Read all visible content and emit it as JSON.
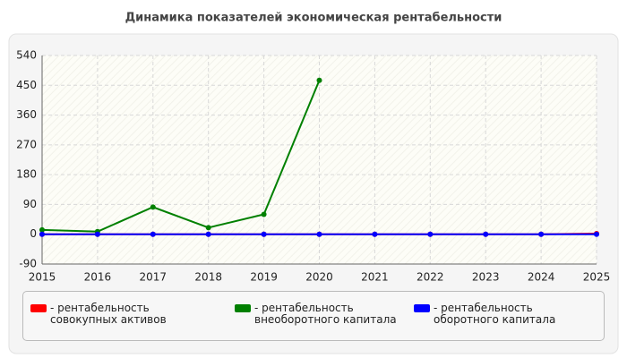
{
  "chart_data": {
    "type": "line",
    "title": "Динамика показателей экономическая рентабельности",
    "x": [
      2015,
      2016,
      2017,
      2018,
      2019,
      2020,
      2021,
      2022,
      2023,
      2024,
      2025
    ],
    "series": [
      {
        "name": "- рентабельность совокупных активов",
        "color": "#ff0000",
        "values": [
          0,
          0,
          0,
          0,
          0,
          0,
          0,
          0,
          0,
          0,
          2
        ]
      },
      {
        "name": "- рентабельность внеоборотного капитала",
        "color": "#008000",
        "values": [
          13,
          8,
          82,
          20,
          60,
          465,
          null,
          null,
          null,
          null,
          null
        ]
      },
      {
        "name": "- рентабельность оборотного капитала",
        "color": "#0000ff",
        "values": [
          0,
          0,
          0,
          0,
          0,
          0,
          0,
          0,
          0,
          0,
          0
        ]
      }
    ],
    "xlim": [
      2015,
      2025
    ],
    "xticks": [
      2015,
      2016,
      2017,
      2018,
      2019,
      2020,
      2021,
      2022,
      2023,
      2024,
      2025
    ],
    "ylim": [
      -90,
      540
    ],
    "yticks": [
      -90,
      0,
      90,
      180,
      270,
      360,
      450,
      540
    ],
    "grid": true
  }
}
